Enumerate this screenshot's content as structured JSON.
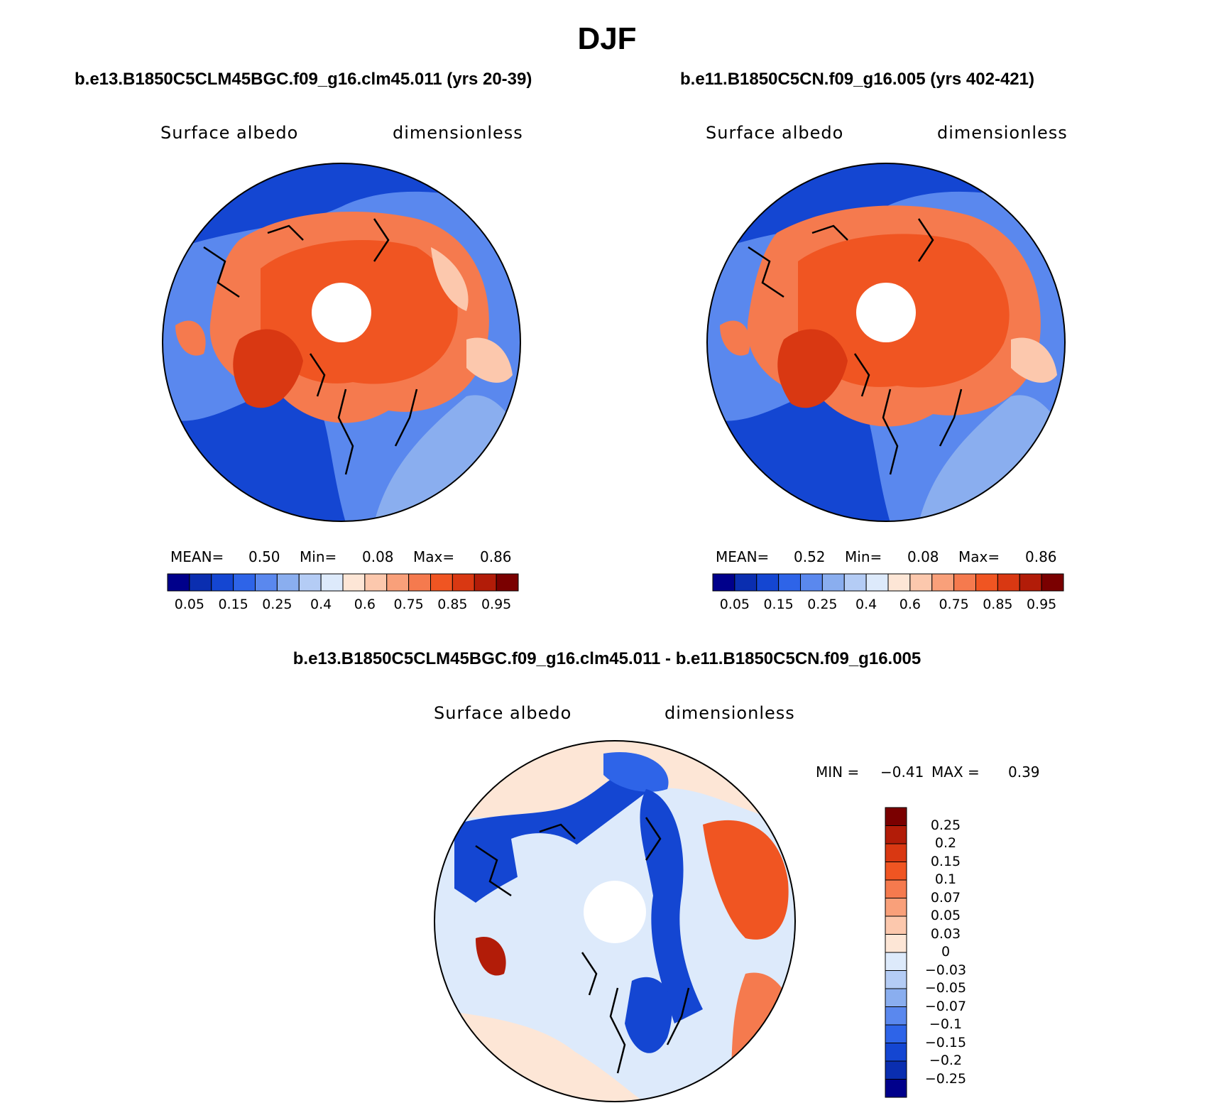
{
  "title": "DJF",
  "panels": [
    {
      "case_title": "b.e13.B1850C5CLM45BGC.f09_g16.clm45.011 (yrs 20-39)",
      "variable": "Surface albedo",
      "units": "dimensionless",
      "stats": {
        "mean_label": "MEAN=",
        "mean": "0.50",
        "min_label": "Min=",
        "min": "0.08",
        "max_label": "Max=",
        "max": "0.86"
      }
    },
    {
      "case_title": "b.e11.B1850C5CN.f09_g16.005 (yrs 402-421)",
      "variable": "Surface albedo",
      "units": "dimensionless",
      "stats": {
        "mean_label": "MEAN=",
        "mean": "0.52",
        "min_label": "Min=",
        "min": "0.08",
        "max_label": "Max=",
        "max": "0.86"
      }
    }
  ],
  "colorbar": {
    "colors": [
      "#00008b",
      "#0a2eb0",
      "#1446d2",
      "#2e64e8",
      "#5a88ee",
      "#8aaeef",
      "#b4ccf5",
      "#ddeafb",
      "#fde6d6",
      "#fcc8ad",
      "#f9a07a",
      "#f57a4e",
      "#f05522",
      "#d93812",
      "#b21c08",
      "#7a0000"
    ],
    "labels": [
      "0.05",
      "0.15",
      "0.25",
      "0.4",
      "0.6",
      "0.75",
      "0.85",
      "0.95"
    ]
  },
  "diff": {
    "title": "b.e13.B1850C5CLM45BGC.f09_g16.clm45.011 - b.e11.B1850C5CN.f09_g16.005",
    "variable": "Surface albedo",
    "units": "dimensionless",
    "min_label": "MIN =",
    "min": "−0.41",
    "max_label": "MAX =",
    "max": "0.39",
    "colors": [
      "#7a0000",
      "#b21c08",
      "#d93812",
      "#f05522",
      "#f57a4e",
      "#f9a07a",
      "#fcc8ad",
      "#fde6d6",
      "#ddeafb",
      "#b4ccf5",
      "#8aaeef",
      "#5a88ee",
      "#2e64e8",
      "#1446d2",
      "#0a2eb0",
      "#00008b"
    ],
    "labels": [
      "0.25",
      "0.2",
      "0.15",
      "0.1",
      "0.07",
      "0.05",
      "0.03",
      "0",
      "−0.03",
      "−0.05",
      "−0.07",
      "−0.1",
      "−0.15",
      "−0.2",
      "−0.25"
    ]
  }
}
